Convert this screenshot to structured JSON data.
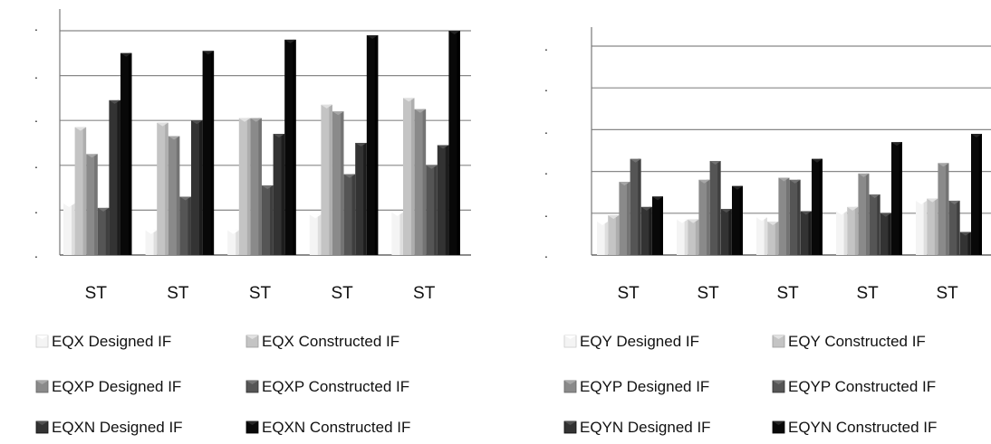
{
  "chart_data": [
    {
      "type": "bar",
      "categories": [
        "ST",
        "ST",
        "ST",
        "ST",
        "ST"
      ],
      "ylim": [
        0,
        5
      ],
      "yticks": [
        ".",
        ".",
        ".",
        ".",
        ".",
        "."
      ],
      "grid": true,
      "legend_placement": "bottom",
      "series": [
        {
          "name": "EQX Designed IF",
          "values": [
            1.15,
            0.55,
            0.55,
            0.9,
            0.95
          ],
          "color": "#f4f4f4"
        },
        {
          "name": "EQX Constructed IF",
          "values": [
            2.85,
            2.95,
            3.05,
            3.35,
            3.5
          ],
          "color": "#c4c4c4"
        },
        {
          "name": "EQXP Designed IF",
          "values": [
            2.25,
            2.65,
            3.05,
            3.2,
            3.25
          ],
          "color": "#8a8a8a"
        },
        {
          "name": "EQXP Constructed IF",
          "values": [
            1.05,
            1.3,
            1.55,
            1.8,
            2.0
          ],
          "color": "#555555"
        },
        {
          "name": "EQXN Designed IF",
          "values": [
            3.45,
            3.0,
            2.7,
            2.5,
            2.45
          ],
          "color": "#333333"
        },
        {
          "name": "EQXN Constructed IF",
          "values": [
            4.5,
            4.55,
            4.8,
            4.9,
            5.0
          ],
          "color": "#080808"
        }
      ]
    },
    {
      "type": "bar",
      "categories": [
        "ST",
        "ST",
        "ST",
        "ST",
        "ST"
      ],
      "ylim": [
        0,
        5
      ],
      "yticks": [
        ".",
        ".",
        ".",
        ".",
        ".",
        "."
      ],
      "grid": true,
      "legend_placement": "bottom",
      "series": [
        {
          "name": "EQY Designed IF",
          "values": [
            0.8,
            0.85,
            0.9,
            1.05,
            1.3
          ],
          "color": "#f4f4f4"
        },
        {
          "name": "EQY Constructed IF",
          "values": [
            0.95,
            0.85,
            0.8,
            1.15,
            1.35
          ],
          "color": "#c4c4c4"
        },
        {
          "name": "EQYP Designed IF",
          "values": [
            1.75,
            1.8,
            1.85,
            1.95,
            2.2
          ],
          "color": "#8a8a8a"
        },
        {
          "name": "EQYP Constructed IF",
          "values": [
            2.3,
            2.25,
            1.8,
            1.45,
            1.3
          ],
          "color": "#555555"
        },
        {
          "name": "EQYN Designed IF",
          "values": [
            1.15,
            1.1,
            1.05,
            1.0,
            0.55
          ],
          "color": "#333333"
        },
        {
          "name": "EQYN Constructed IF",
          "values": [
            1.4,
            1.65,
            2.3,
            2.7,
            2.9
          ],
          "color": "#080808"
        }
      ]
    }
  ]
}
